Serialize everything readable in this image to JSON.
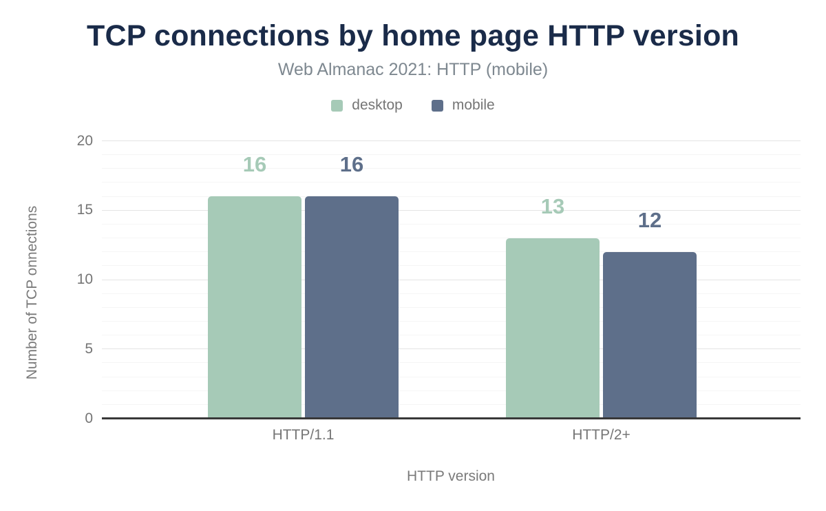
{
  "chart_data": {
    "type": "bar",
    "title": "TCP connections by home page HTTP version",
    "subtitle": "Web Almanac 2021: HTTP (mobile)",
    "categories": [
      "HTTP/1.1",
      "HTTP/2+"
    ],
    "series": [
      {
        "name": "desktop",
        "color": "#a6cab7",
        "values": [
          16,
          13
        ]
      },
      {
        "name": "mobile",
        "color": "#5e6f8a",
        "values": [
          16,
          12
        ]
      }
    ],
    "xlabel": "HTTP version",
    "ylabel": "Number of TCP onnections",
    "ylim": [
      0,
      20
    ],
    "yticks": [
      0,
      5,
      10,
      15,
      20
    ],
    "grid": "horizontal, minor every 1 unit, major every 5 units",
    "legend_position": "top-center",
    "value_labels": true
  },
  "colors": {
    "title_navy": "#1a2b49",
    "subtitle_gray": "#7e8890",
    "axis_text_gray": "#757575",
    "axis_line": "#383838",
    "desktop_green": "#a6cab7",
    "mobile_slate": "#5e6f8a",
    "background": "#ffffff"
  }
}
